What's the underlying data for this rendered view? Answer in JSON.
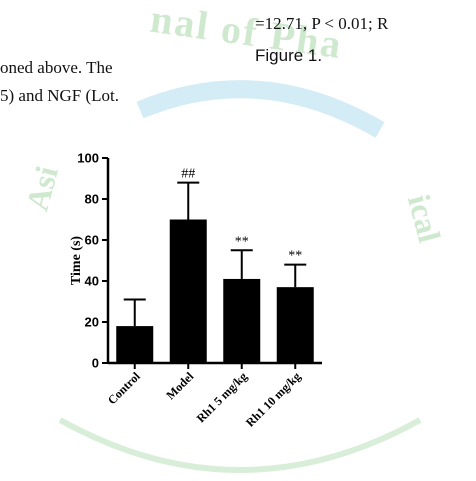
{
  "document": {
    "line_top_right": "=12.71, P < 0.01; R",
    "line_figure_ref": "Figure 1.",
    "line_left_1": "oned  above.  The",
    "line_left_2": "5) and NGF (Lot."
  },
  "watermark": {
    "color": "#cfe9cf",
    "fragments": [
      "nal of Pha",
      "Asi",
      "ical"
    ]
  },
  "chart_data": {
    "type": "bar",
    "categories": [
      "Control",
      "Model",
      "Rh1 5 mg/kg",
      "Rh1 10 mg/kg"
    ],
    "values": [
      18,
      70,
      41,
      37
    ],
    "errors": [
      13,
      18,
      14,
      11
    ],
    "significance": [
      "",
      "##",
      "**",
      "**"
    ],
    "ylabel": "Time (s)",
    "xlabel": "",
    "title": "",
    "ylim": [
      0,
      100
    ],
    "yticks": [
      0,
      20,
      40,
      60,
      80,
      100
    ],
    "bar_color": "#000000",
    "grid": false
  }
}
